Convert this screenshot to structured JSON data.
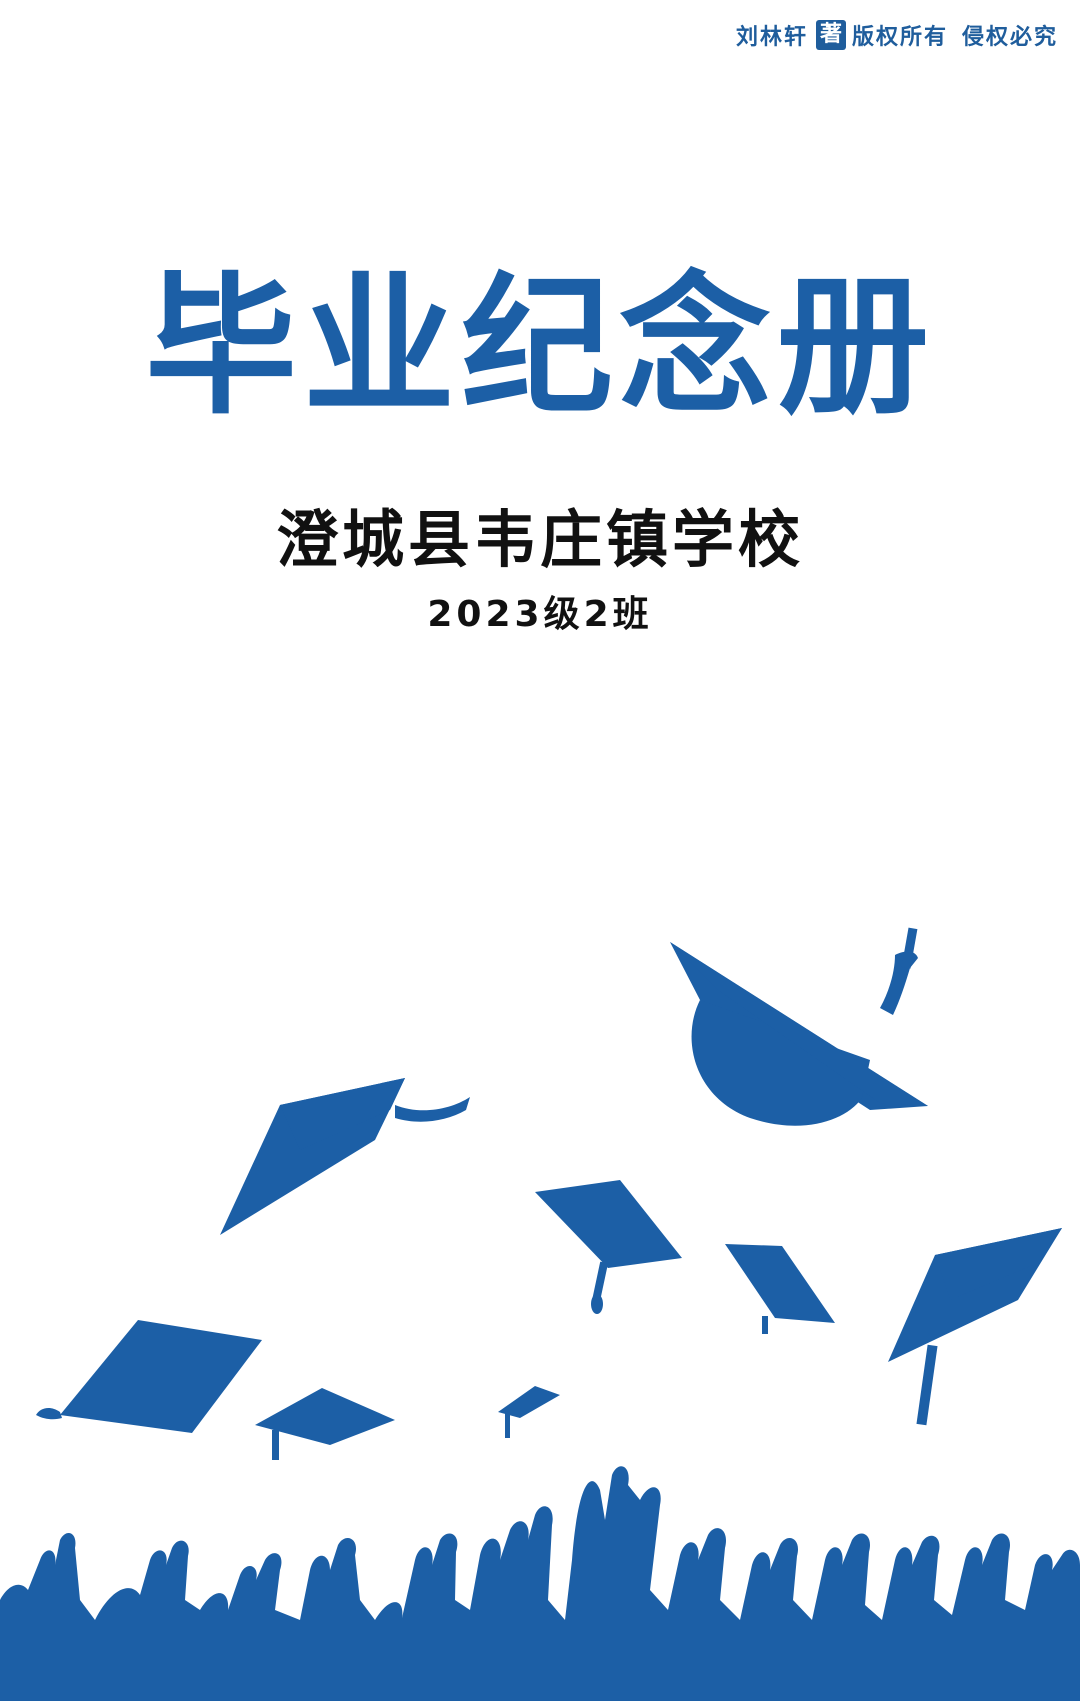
{
  "copyright": {
    "author": "刘林轩",
    "badge": "著",
    "rights": "版权所有",
    "warning": "侵权必究"
  },
  "cover": {
    "title": "毕业纪念册",
    "school": "澄城县韦庄镇学校",
    "class_name": "2023级2班"
  },
  "colors": {
    "brand_blue": "#1c5fa6",
    "text_dark": "#111111",
    "background": "#ffffff"
  },
  "illustration": {
    "caps": 8,
    "hands": 18
  }
}
